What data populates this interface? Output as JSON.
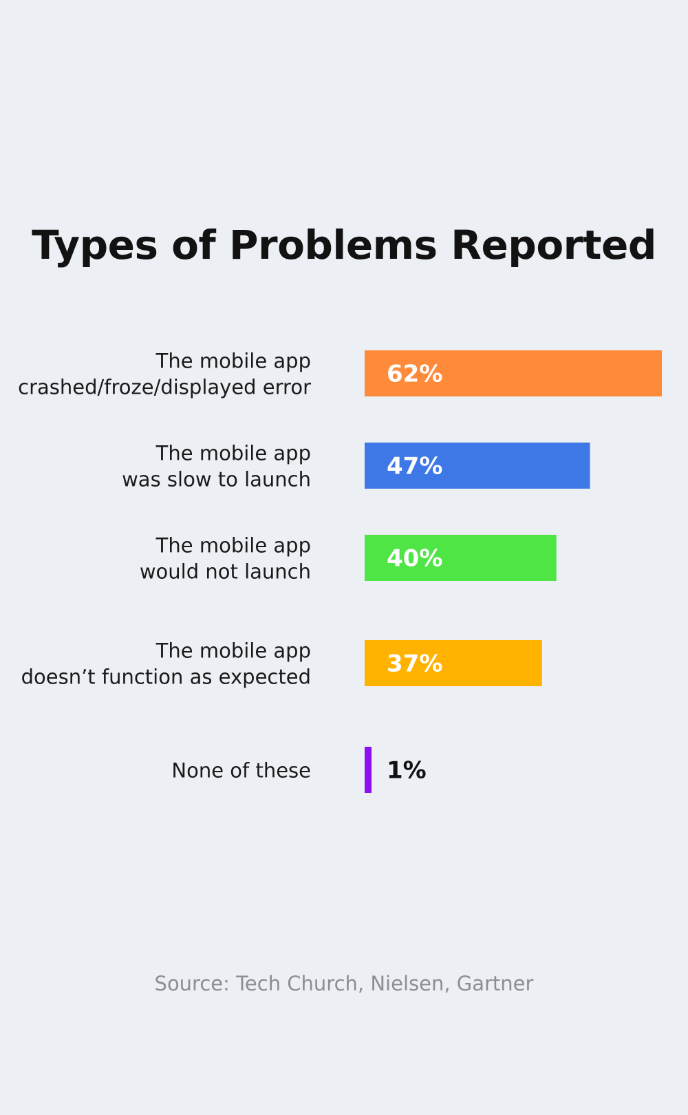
{
  "title": "Types of Problems Reported",
  "source": "Source: Tech Church, Nielsen, Gartner",
  "chart_data": {
    "type": "bar",
    "orientation": "horizontal",
    "title": "Types of Problems Reported",
    "categories": [
      [
        "The mobile app",
        "crashed/froze/displayed error"
      ],
      [
        "The mobile app",
        "was slow to launch"
      ],
      [
        "The mobile app",
        "would not launch"
      ],
      [
        "The mobile app",
        "doesn’t function as expected"
      ],
      [
        "None of these"
      ]
    ],
    "values": [
      62,
      47,
      40,
      37,
      1
    ],
    "labels": [
      "62%",
      "47%",
      "40%",
      "37%",
      "1%"
    ],
    "colors": [
      "#ff8a3a",
      "#3e78e6",
      "#4fe545",
      "#ffb300",
      "#8e0ff2"
    ],
    "label_colors": [
      "#ffffff",
      "#ffffff",
      "#ffffff",
      "#ffffff",
      "#111111"
    ],
    "unit": "%",
    "xlim": [
      0,
      62
    ],
    "grid": false,
    "legend": "none"
  }
}
